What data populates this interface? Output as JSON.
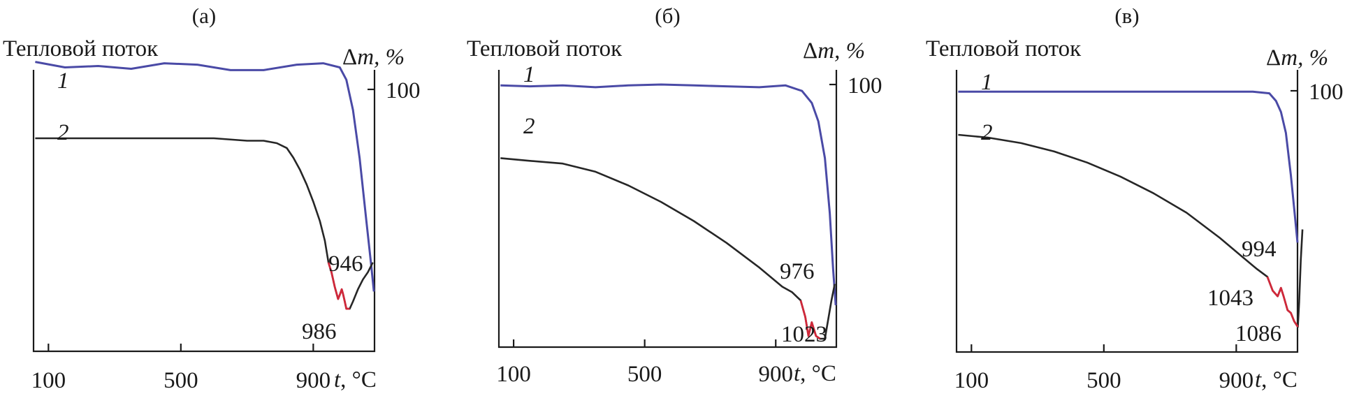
{
  "chart_data": [
    {
      "type": "line",
      "panel_label": "(а)",
      "left_axis_title": "Тепловой поток",
      "right_axis_title_symbol": "Δ",
      "right_axis_title_var": "m",
      "right_axis_title_unit": ", %",
      "right_axis_tick": "100",
      "xlabel_var": "t",
      "xlabel_unit": ", °C",
      "x_ticks": [
        100,
        500,
        900
      ],
      "xlim": [
        55,
        1085
      ],
      "grid": false,
      "series": [
        {
          "name": "1",
          "color": "#4a4aa6",
          "points": [
            [
              60,
              100
            ],
            [
              150,
              99.6
            ],
            [
              250,
              99.7
            ],
            [
              350,
              99.5
            ],
            [
              450,
              99.9
            ],
            [
              550,
              99.8
            ],
            [
              650,
              99.4
            ],
            [
              750,
              99.4
            ],
            [
              850,
              99.8
            ],
            [
              930,
              99.9
            ],
            [
              980,
              99.6
            ],
            [
              1000,
              98.7
            ],
            [
              1020,
              96.5
            ],
            [
              1040,
              93
            ],
            [
              1060,
              88.5
            ],
            [
              1075,
              85.2
            ],
            [
              1083,
              83.3
            ]
          ]
        },
        {
          "name": "2",
          "color": "#262626",
          "points": [
            [
              60,
              0.82
            ],
            [
              150,
              0.82
            ],
            [
              250,
              0.82
            ],
            [
              350,
              0.82
            ],
            [
              450,
              0.82
            ],
            [
              550,
              0.82
            ],
            [
              600,
              0.82
            ],
            [
              700,
              0.81
            ],
            [
              750,
              0.81
            ],
            [
              790,
              0.8
            ],
            [
              820,
              0.78
            ],
            [
              840,
              0.74
            ],
            [
              860,
              0.69
            ],
            [
              880,
              0.63
            ],
            [
              900,
              0.56
            ],
            [
              920,
              0.48
            ],
            [
              935,
              0.4
            ],
            [
              946,
              0.31
            ],
            [
              955,
              0.27
            ],
            [
              965,
              0.21
            ],
            [
              975,
              0.16
            ],
            [
              981,
              0.18
            ],
            [
              986,
              0.2
            ],
            [
              990,
              0.18
            ],
            [
              995,
              0.15
            ],
            [
              1000,
              0.12
            ],
            [
              1010,
              0.12
            ],
            [
              1020,
              0.15
            ],
            [
              1035,
              0.2
            ],
            [
              1050,
              0.24
            ],
            [
              1065,
              0.27
            ],
            [
              1080,
              0.31
            ]
          ]
        }
      ],
      "red_segment_x": [
        946,
        1010
      ],
      "peak_labels": [
        {
          "text": "946",
          "x": 946
        },
        {
          "text": "986",
          "x": 986
        }
      ],
      "curve_labels": [
        "1",
        "2"
      ]
    },
    {
      "type": "line",
      "panel_label": "(б)",
      "left_axis_title": "Тепловой поток",
      "right_axis_title_symbol": "Δ",
      "right_axis_title_var": "m",
      "right_axis_title_unit": ", %",
      "right_axis_tick": "100",
      "xlabel_var": "t",
      "xlabel_unit": ", °C",
      "x_ticks": [
        100,
        500,
        900
      ],
      "xlim": [
        55,
        1085
      ],
      "grid": false,
      "series": [
        {
          "name": "1",
          "color": "#4a4aa6",
          "points": [
            [
              60,
              99.9
            ],
            [
              150,
              99.8
            ],
            [
              250,
              99.9
            ],
            [
              350,
              99.7
            ],
            [
              450,
              99.9
            ],
            [
              550,
              100
            ],
            [
              650,
              99.9
            ],
            [
              750,
              99.8
            ],
            [
              850,
              99.7
            ],
            [
              930,
              99.9
            ],
            [
              980,
              99.3
            ],
            [
              1010,
              98
            ],
            [
              1030,
              96
            ],
            [
              1050,
              92
            ],
            [
              1065,
              86
            ],
            [
              1075,
              80
            ],
            [
              1083,
              76
            ]
          ]
        },
        {
          "name": "2",
          "color": "#262626",
          "points": [
            [
              60,
              0.74
            ],
            [
              150,
              0.73
            ],
            [
              250,
              0.72
            ],
            [
              350,
              0.69
            ],
            [
              450,
              0.64
            ],
            [
              550,
              0.58
            ],
            [
              650,
              0.51
            ],
            [
              750,
              0.43
            ],
            [
              850,
              0.34
            ],
            [
              920,
              0.27
            ],
            [
              950,
              0.25
            ],
            [
              976,
              0.22
            ],
            [
              990,
              0.16
            ],
            [
              1000,
              0.09
            ],
            [
              1010,
              0.14
            ],
            [
              1023,
              0.09
            ],
            [
              1035,
              0.08
            ],
            [
              1050,
              0.08
            ],
            [
              1060,
              0.15
            ],
            [
              1070,
              0.22
            ],
            [
              1080,
              0.28
            ]
          ]
        }
      ],
      "red_segment_x": [
        976,
        1040
      ],
      "peak_labels": [
        {
          "text": "976",
          "x": 976
        },
        {
          "text": "1023",
          "x": 1023
        }
      ],
      "curve_labels": [
        "1",
        "2"
      ]
    },
    {
      "type": "line",
      "panel_label": "(в)",
      "left_axis_title": "Тепловой поток",
      "right_axis_title_symbol": "Δ",
      "right_axis_title_var": "m",
      "right_axis_title_unit": ", %",
      "right_axis_tick": "100",
      "xlabel_var": "t",
      "xlabel_unit": ", °C",
      "x_ticks": [
        100,
        500,
        900
      ],
      "xlim": [
        55,
        1085
      ],
      "grid": false,
      "series": [
        {
          "name": "1",
          "color": "#4a4aa6",
          "points": [
            [
              60,
              99.9
            ],
            [
              200,
              99.9
            ],
            [
              400,
              99.9
            ],
            [
              600,
              99.9
            ],
            [
              800,
              99.9
            ],
            [
              950,
              99.9
            ],
            [
              1000,
              99.7
            ],
            [
              1020,
              98.8
            ],
            [
              1035,
              97.5
            ],
            [
              1050,
              95
            ],
            [
              1065,
              90
            ],
            [
              1075,
              86
            ],
            [
              1085,
              82
            ]
          ]
        },
        {
          "name": "2",
          "color": "#262626",
          "points": [
            [
              60,
              0.8
            ],
            [
              150,
              0.79
            ],
            [
              250,
              0.77
            ],
            [
              350,
              0.74
            ],
            [
              450,
              0.7
            ],
            [
              550,
              0.65
            ],
            [
              650,
              0.59
            ],
            [
              750,
              0.52
            ],
            [
              850,
              0.43
            ],
            [
              920,
              0.36
            ],
            [
              960,
              0.32
            ],
            [
              994,
              0.29
            ],
            [
              1010,
              0.24
            ],
            [
              1025,
              0.22
            ],
            [
              1035,
              0.25
            ],
            [
              1043,
              0.22
            ],
            [
              1055,
              0.17
            ],
            [
              1065,
              0.16
            ],
            [
              1075,
              0.13
            ],
            [
              1086,
              0.11
            ],
            [
              1090,
              0.2
            ],
            [
              1095,
              0.35
            ],
            [
              1100,
              0.46
            ]
          ]
        }
      ],
      "red_segment_x": [
        994,
        1086
      ],
      "peak_labels": [
        {
          "text": "994",
          "x": 994
        },
        {
          "text": "1043",
          "x": 1043
        },
        {
          "text": "1086",
          "x": 1086
        }
      ],
      "curve_labels": [
        "1",
        "2"
      ]
    }
  ]
}
